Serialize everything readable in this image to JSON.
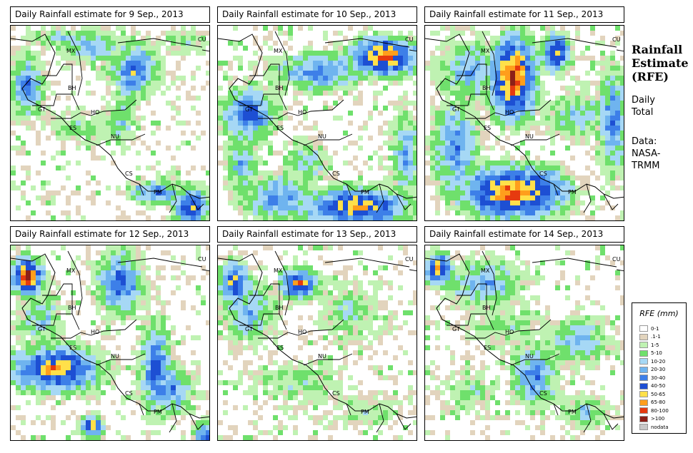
{
  "panels": [
    {
      "title": "Daily Rainfall estimate for  9 Sep., 2013",
      "seed": 9
    },
    {
      "title": "Daily Rainfall estimate for  10 Sep., 2013",
      "seed": 10
    },
    {
      "title": "Daily Rainfall estimate for  11 Sep., 2013",
      "seed": 11
    },
    {
      "title": "Daily Rainfall estimate for  12 Sep., 2013",
      "seed": 12
    },
    {
      "title": "Daily Rainfall estimate for  13 Sep., 2013",
      "seed": 13
    },
    {
      "title": "Daily Rainfall estimate for  14 Sep., 2013",
      "seed": 14
    }
  ],
  "country_labels": [
    "MX",
    "CU",
    "BH",
    "GT",
    "HO",
    "ES",
    "NU",
    "CS",
    "PM"
  ],
  "sidebar": {
    "title_lines": [
      "Rainfall",
      "Estimate",
      "(RFE)"
    ],
    "period_lines": [
      "Daily",
      "Total"
    ],
    "source_lines": [
      "Data:",
      "NASA-",
      "TRMM"
    ]
  },
  "legend": {
    "title": "RFE (mm)",
    "items": [
      {
        "label": "0-1",
        "color": "#ffffff"
      },
      {
        "label": ".1-1",
        "color": "#e2d4bd"
      },
      {
        "label": "1-5",
        "color": "#bff2b2"
      },
      {
        "label": "5-10",
        "color": "#6fe06c"
      },
      {
        "label": "10-20",
        "color": "#a6d8f5"
      },
      {
        "label": "20-30",
        "color": "#6fb4ef"
      },
      {
        "label": "30-40",
        "color": "#3d7fe8"
      },
      {
        "label": "40-50",
        "color": "#1d4fd3"
      },
      {
        "label": "50-65",
        "color": "#ffe04a"
      },
      {
        "label": "65-80",
        "color": "#ff9e1c"
      },
      {
        "label": "80-100",
        "color": "#e63a0f"
      },
      {
        "label": ">100",
        "color": "#8c2018"
      },
      {
        "label": "nodata",
        "color": "#c8c8c8"
      }
    ]
  }
}
